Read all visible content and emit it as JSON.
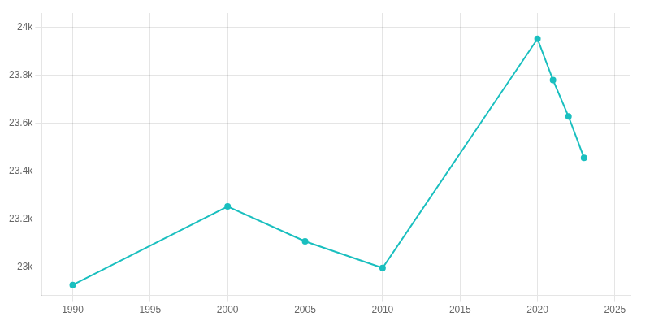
{
  "chart_data": {
    "type": "line",
    "x": [
      1990,
      2000,
      2005,
      2010,
      2020,
      2021,
      2022,
      2023
    ],
    "values": [
      22924,
      23252,
      23106,
      22995,
      23952,
      23780,
      23628,
      23455
    ],
    "color": "#1ABFBF",
    "marker": "circle",
    "xlim": [
      1988,
      2026
    ],
    "ylim": [
      22880,
      24060
    ],
    "xticks": [
      1990,
      1995,
      2000,
      2005,
      2010,
      2015,
      2020,
      2025
    ],
    "yticks": [
      {
        "value": 23000,
        "label": "23k"
      },
      {
        "value": 23200,
        "label": "23.2k"
      },
      {
        "value": 23400,
        "label": "23.4k"
      },
      {
        "value": 23600,
        "label": "23.6k"
      },
      {
        "value": 23800,
        "label": "23.8k"
      },
      {
        "value": 24000,
        "label": "24k"
      }
    ],
    "grid": true
  }
}
